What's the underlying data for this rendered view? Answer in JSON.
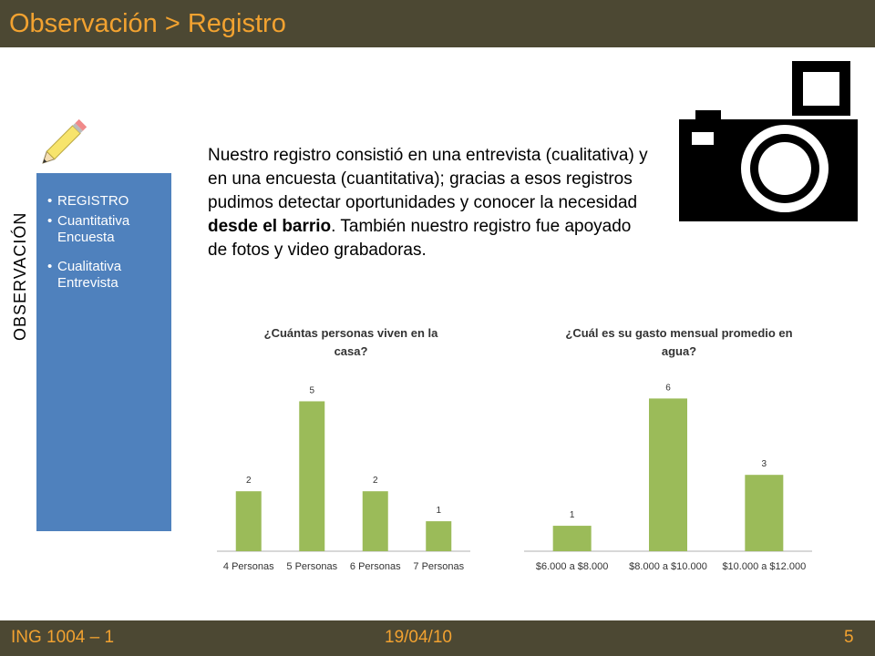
{
  "header": {
    "title": "Observación > Registro"
  },
  "sidebar": {
    "label": "OBSERVACIÓN",
    "items": [
      {
        "lines": [
          "REGISTRO"
        ]
      },
      {
        "lines": [
          "Cuantitativa",
          "Encuesta"
        ]
      },
      {
        "lines": [
          "Cualitativa",
          "Entrevista"
        ]
      }
    ]
  },
  "body": {
    "text_a": "Nuestro registro consistió en una entrevista (cualitativa) y en una encuesta (cuantitativa); gracias a esos registros pudimos detectar oportunidades y conocer la necesidad ",
    "text_bold": "desde el barrio",
    "text_b": ". También nuestro registro fue apoyado de fotos y video grabadoras."
  },
  "footer": {
    "course": "ING 1004 – 1",
    "date": "19/04/10",
    "page": "5"
  },
  "colors": {
    "bar": "#9bbb59",
    "topbar": "#4c4833",
    "accent": "#f2a230",
    "panel": "#4f81bd"
  },
  "icons": {
    "pencil": "pencil-icon",
    "camera": "camera-icon"
  },
  "chart_data": [
    {
      "type": "bar",
      "title": "¿Cuántas personas viven en la casa?",
      "title_lines": [
        "¿Cuántas personas viven en la",
        "casa?"
      ],
      "categories": [
        "4 Personas",
        "5 Personas",
        "6 Personas",
        "7 Personas"
      ],
      "values": [
        2,
        5,
        2,
        1
      ],
      "ylim": [
        0,
        5.5
      ],
      "grid": false,
      "legend": "none"
    },
    {
      "type": "bar",
      "title": "¿Cuál es su gasto mensual promedio en agua?",
      "title_lines": [
        "¿Cuál es su gasto mensual promedio en",
        "agua?"
      ],
      "categories": [
        "$6.000 a $8.000",
        "$8.000 a $10.000",
        "$10.000 a $12.000"
      ],
      "values": [
        1,
        6,
        3
      ],
      "ylim": [
        0,
        6.3
      ],
      "grid": false,
      "legend": "none"
    }
  ]
}
